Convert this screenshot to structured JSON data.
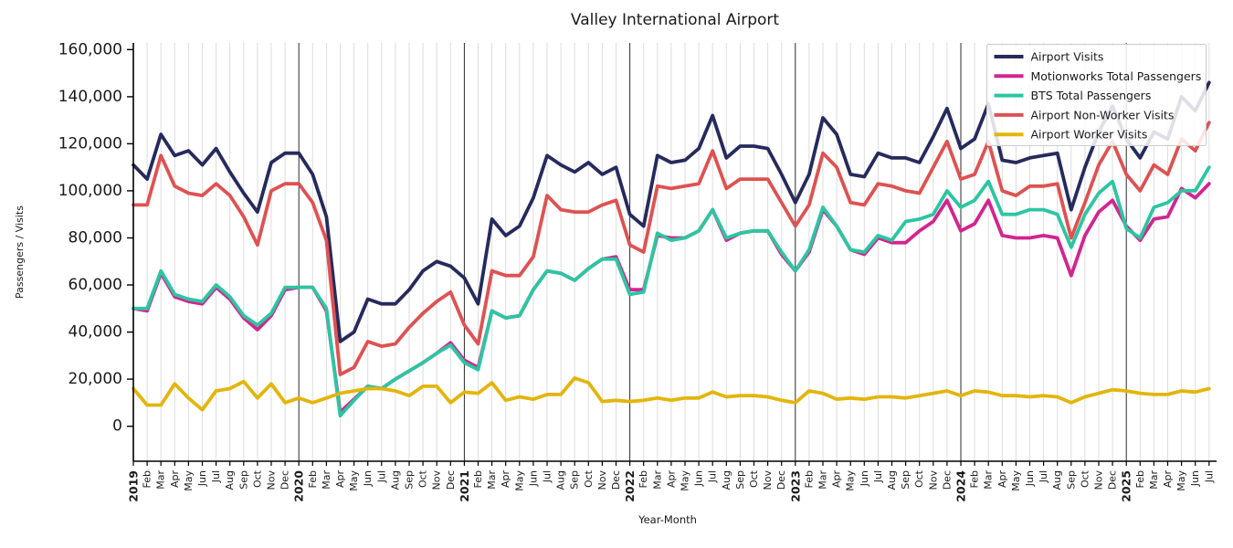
{
  "title": "Valley International Airport",
  "chart_data": {
    "type": "line",
    "title": "Valley International Airport",
    "xlabel": "Year-Month",
    "ylabel": "Passengers / Visits",
    "ylim": [
      0,
      160000
    ],
    "grid": "vertical-monthly, dark line at each January",
    "legend_position": "upper right",
    "y_ticks": [
      {
        "value": 0,
        "label": "0"
      },
      {
        "value": 20000,
        "label": "20,000"
      },
      {
        "value": 40000,
        "label": "40,000"
      },
      {
        "value": 60000,
        "label": "60,000"
      },
      {
        "value": 80000,
        "label": "80,000"
      },
      {
        "value": 100000,
        "label": "100,000"
      },
      {
        "value": 120000,
        "label": "120,000"
      },
      {
        "value": 140000,
        "label": "140,000"
      },
      {
        "value": 160000,
        "label": "160,000"
      }
    ],
    "x_labels": [
      "2019",
      "Feb",
      "Mar",
      "Apr",
      "May",
      "Jun",
      "Jul",
      "Aug",
      "Sep",
      "Oct",
      "Nov",
      "Dec",
      "2020",
      "Feb",
      "Mar",
      "Apr",
      "May",
      "Jun",
      "Jul",
      "Aug",
      "Sep",
      "Oct",
      "Nov",
      "Dec",
      "2021",
      "Feb",
      "Mar",
      "Apr",
      "May",
      "Jun",
      "Jul",
      "Aug",
      "Sep",
      "Oct",
      "Nov",
      "Dec",
      "2022",
      "Feb",
      "Mar",
      "Apr",
      "May",
      "Jun",
      "Jul",
      "Aug",
      "Sep",
      "Oct",
      "Nov",
      "Dec",
      "2023",
      "Feb",
      "Mar",
      "Apr",
      "May",
      "Jun",
      "Jul",
      "Aug",
      "Sep",
      "Oct",
      "Nov",
      "Dec",
      "2024",
      "Feb",
      "Mar",
      "Apr",
      "May",
      "Jun",
      "Jul",
      "Aug",
      "Sep",
      "Oct",
      "Nov",
      "Dec",
      "2025",
      "Feb",
      "Mar",
      "Apr",
      "May",
      "Jun",
      "Jul"
    ],
    "series": [
      {
        "name": "Airport Visits",
        "color": "#262a5c",
        "values": [
          111000,
          105000,
          124000,
          115000,
          117000,
          111000,
          118000,
          108000,
          99000,
          91000,
          112000,
          116000,
          116000,
          107000,
          89000,
          36000,
          40000,
          54000,
          52000,
          52000,
          58000,
          66000,
          70000,
          68000,
          63000,
          52000,
          88000,
          81000,
          85000,
          97000,
          115000,
          111000,
          108000,
          112000,
          107000,
          110000,
          90000,
          85000,
          115000,
          112000,
          113000,
          118000,
          132000,
          114000,
          119000,
          119000,
          118000,
          107000,
          95000,
          107000,
          131000,
          124000,
          107000,
          106000,
          116000,
          114000,
          114000,
          112000,
          123000,
          135000,
          118000,
          122000,
          137000,
          113000,
          112000,
          114000,
          115000,
          116000,
          92000,
          110000,
          125000,
          136000,
          122000,
          114000,
          125000,
          122000,
          140000,
          134000,
          146000
        ]
      },
      {
        "name": "Motionworks Total Passengers",
        "color": "#d2258f",
        "values": [
          50000,
          49000,
          65000,
          55000,
          53000,
          52000,
          59000,
          54000,
          46000,
          41000,
          47000,
          58000,
          59000,
          59000,
          49000,
          6000,
          11500,
          17000,
          16000,
          20000,
          23500,
          27000,
          31000,
          35500,
          28000,
          25000,
          49000,
          46000,
          47000,
          58000,
          66000,
          65000,
          62000,
          67000,
          71000,
          72000,
          58000,
          58000,
          81000,
          80000,
          80000,
          83000,
          92000,
          79000,
          82000,
          83000,
          83000,
          73000,
          66000,
          74000,
          92000,
          85000,
          75000,
          73000,
          80000,
          78000,
          78000,
          83000,
          87000,
          96000,
          83000,
          86000,
          96000,
          81000,
          80000,
          80000,
          81000,
          80000,
          64000,
          81000,
          91000,
          96000,
          85000,
          79000,
          88000,
          89000,
          101000,
          97000,
          103000
        ]
      },
      {
        "name": "BTS Total Passengers",
        "color": "#2dc5a2",
        "values": [
          50000,
          50000,
          66000,
          56000,
          54000,
          53000,
          60000,
          55000,
          47000,
          43000,
          48000,
          59000,
          59000,
          59000,
          50000,
          4500,
          11000,
          17000,
          16000,
          20000,
          23500,
          27000,
          31000,
          34500,
          27000,
          24000,
          49000,
          46000,
          47000,
          58000,
          66000,
          65000,
          62000,
          67000,
          71000,
          71000,
          56000,
          57000,
          82000,
          79000,
          80000,
          83000,
          92000,
          80000,
          82000,
          83000,
          83000,
          74000,
          66000,
          75000,
          93000,
          85000,
          75000,
          74000,
          81000,
          79000,
          87000,
          88000,
          90000,
          100000,
          93000,
          96000,
          104000,
          90000,
          90000,
          92000,
          92000,
          90000,
          76000,
          90000,
          99000,
          104000,
          84000,
          80000,
          93000,
          95000,
          100000,
          100000,
          110000
        ]
      },
      {
        "name": "Airport Non-Worker Visits",
        "color": "#de5252",
        "values": [
          94000,
          94000,
          115000,
          102000,
          99000,
          98000,
          103000,
          98000,
          89000,
          77000,
          100000,
          103000,
          103000,
          95000,
          79000,
          22000,
          25000,
          36000,
          34000,
          35000,
          42000,
          48000,
          53000,
          57000,
          43000,
          35000,
          66000,
          64000,
          64000,
          72000,
          98000,
          92000,
          91000,
          91000,
          94000,
          96000,
          77000,
          74000,
          102000,
          101000,
          102000,
          103000,
          117000,
          101000,
          105000,
          105000,
          105000,
          95000,
          85000,
          94000,
          116000,
          110000,
          95000,
          94000,
          103000,
          102000,
          100000,
          99000,
          110000,
          121000,
          105000,
          107000,
          121000,
          100000,
          98000,
          102000,
          102000,
          103000,
          80000,
          95000,
          111000,
          121000,
          107000,
          100000,
          111000,
          107000,
          122000,
          117000,
          129000
        ]
      },
      {
        "name": "Airport Worker Visits",
        "color": "#e3b50c",
        "values": [
          16000,
          9000,
          9000,
          18000,
          12000,
          7000,
          15000,
          16000,
          19000,
          12000,
          18000,
          10000,
          12000,
          10000,
          12000,
          14000,
          15000,
          16000,
          16000,
          15000,
          13000,
          17000,
          17000,
          10000,
          14500,
          14000,
          18500,
          11000,
          12500,
          11500,
          13500,
          13500,
          20500,
          18500,
          10500,
          11000,
          10500,
          11000,
          12000,
          11000,
          12000,
          12000,
          14500,
          12500,
          13000,
          13000,
          12500,
          11000,
          10000,
          15000,
          14000,
          11500,
          12000,
          11500,
          12500,
          12500,
          12000,
          13000,
          14000,
          15000,
          13000,
          15000,
          14500,
          13000,
          13000,
          12500,
          13000,
          12500,
          10000,
          12500,
          14000,
          15500,
          15000,
          14000,
          13500,
          13500,
          15000,
          14500,
          16000
        ]
      }
    ]
  }
}
